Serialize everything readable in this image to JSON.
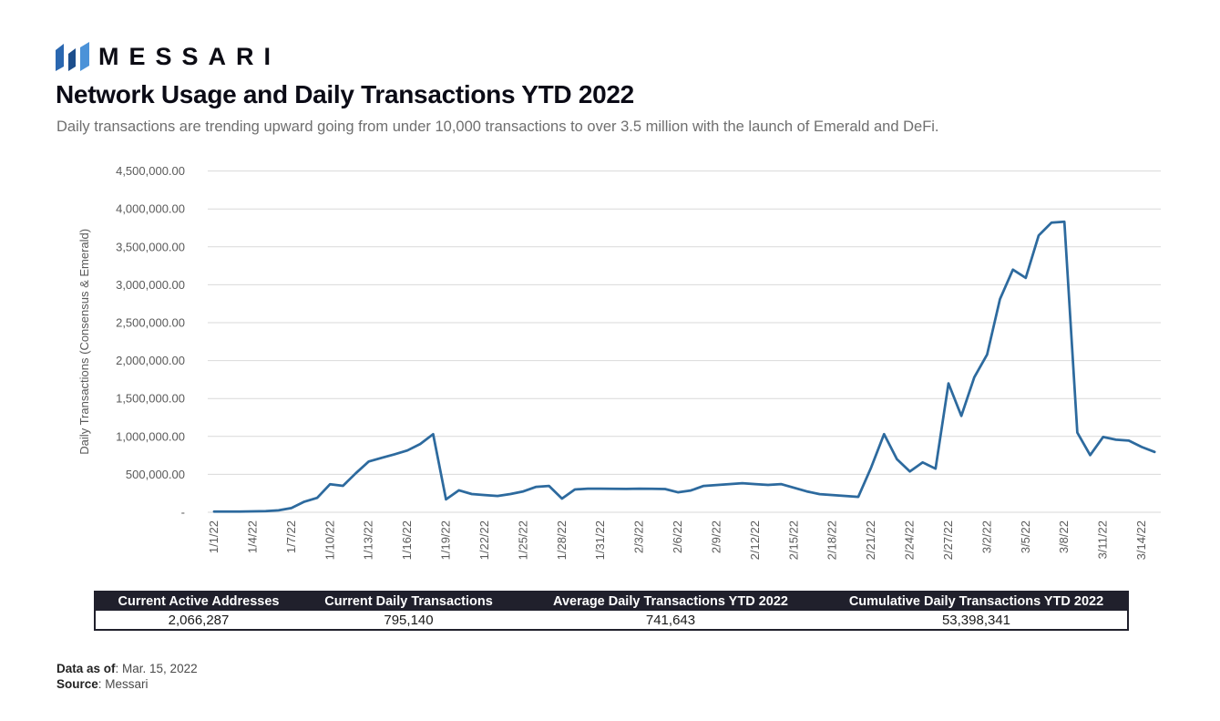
{
  "brand": {
    "logo_text": "MESSARI",
    "icon_colors": [
      "#2a67b0",
      "#1d4e8c",
      "#4b92d8"
    ]
  },
  "header": {
    "title": "Network Usage and Daily Transactions YTD 2022",
    "subtitle": "Daily transactions are trending upward going from under 10,000 transactions to over 3.5 million with the launch of Emerald and DeFi."
  },
  "chart_data": {
    "type": "line",
    "title": "Network Usage and Daily Transactions YTD 2022",
    "xlabel": "",
    "ylabel": "Daily Transactions (Consensus & Emerald)",
    "ylim": [
      0,
      4500000
    ],
    "ytick_interval": 500000,
    "y_tick_labels": [
      "-",
      "500,000.00",
      "1,000,000.00",
      "1,500,000.00",
      "2,000,000.00",
      "2,500,000.00",
      "3,000,000.00",
      "3,500,000.00",
      "4,000,000.00",
      "4,500,000.00"
    ],
    "grid": "horizontal",
    "grid_color": "#d9d9d9",
    "line_color": "#2d6a9e",
    "legend_position": "none",
    "x_tick_every": 3,
    "x_tick_labels": [
      "1/1/22",
      "1/4/22",
      "1/7/22",
      "1/10/22",
      "1/13/22",
      "1/16/22",
      "1/19/22",
      "1/22/22",
      "1/25/22",
      "1/28/22",
      "1/31/22",
      "2/3/22",
      "2/6/22",
      "2/9/22",
      "2/12/22",
      "2/15/22",
      "2/18/22",
      "2/21/22",
      "2/24/22",
      "2/27/22",
      "3/2/22",
      "3/5/22",
      "3/8/22",
      "3/11/22",
      "3/14/22"
    ],
    "x": [
      "1/1/22",
      "1/2/22",
      "1/3/22",
      "1/4/22",
      "1/5/22",
      "1/6/22",
      "1/7/22",
      "1/8/22",
      "1/9/22",
      "1/10/22",
      "1/11/22",
      "1/12/22",
      "1/13/22",
      "1/14/22",
      "1/15/22",
      "1/16/22",
      "1/17/22",
      "1/18/22",
      "1/19/22",
      "1/20/22",
      "1/21/22",
      "1/22/22",
      "1/23/22",
      "1/24/22",
      "1/25/22",
      "1/26/22",
      "1/27/22",
      "1/28/22",
      "1/29/22",
      "1/30/22",
      "1/31/22",
      "2/1/22",
      "2/2/22",
      "2/3/22",
      "2/4/22",
      "2/5/22",
      "2/6/22",
      "2/7/22",
      "2/8/22",
      "2/9/22",
      "2/10/22",
      "2/11/22",
      "2/12/22",
      "2/13/22",
      "2/14/22",
      "2/15/22",
      "2/16/22",
      "2/17/22",
      "2/18/22",
      "2/19/22",
      "2/20/22",
      "2/21/22",
      "2/22/22",
      "2/23/22",
      "2/24/22",
      "2/25/22",
      "2/26/22",
      "2/27/22",
      "2/28/22",
      "3/1/22",
      "3/2/22",
      "3/3/22",
      "3/4/22",
      "3/5/22",
      "3/6/22",
      "3/7/22",
      "3/8/22",
      "3/9/22",
      "3/10/22",
      "3/11/22",
      "3/12/22",
      "3/13/22",
      "3/14/22",
      "3/15/22"
    ],
    "series": [
      {
        "name": "Daily Transactions (Consensus & Emerald)",
        "values": [
          8000,
          9000,
          10000,
          12000,
          15000,
          25000,
          55000,
          140000,
          190000,
          370000,
          348000,
          515000,
          670000,
          718000,
          765000,
          815000,
          900000,
          1030000,
          170000,
          290000,
          240000,
          227000,
          215000,
          240000,
          275000,
          335000,
          347000,
          180000,
          300000,
          311000,
          311000,
          310000,
          308000,
          311000,
          309000,
          306000,
          263000,
          287000,
          347000,
          359000,
          371000,
          383000,
          371000,
          360000,
          371000,
          323000,
          275000,
          239000,
          227000,
          215000,
          203000,
          590000,
          1030000,
          700000,
          538000,
          658000,
          574000,
          1700000,
          1270000,
          1780000,
          2080000,
          2810000,
          3200000,
          3090000,
          3650000,
          3820000,
          3830000,
          1050000,
          754000,
          993000,
          957000,
          945000,
          861000,
          795140
        ]
      }
    ]
  },
  "summary_table": {
    "headers": [
      "Current Active Addresses",
      "Current Daily Transactions",
      "Average Daily Transactions YTD 2022",
      "Cumulative Daily Transactions YTD 2022"
    ],
    "values": [
      "2,066,287",
      "795,140",
      "741,643",
      "53,398,341"
    ]
  },
  "footer": {
    "data_as_of_label": "Data as of",
    "data_as_of_value": ": Mar. 15, 2022",
    "source_label": "Source",
    "source_value": ": Messari"
  }
}
